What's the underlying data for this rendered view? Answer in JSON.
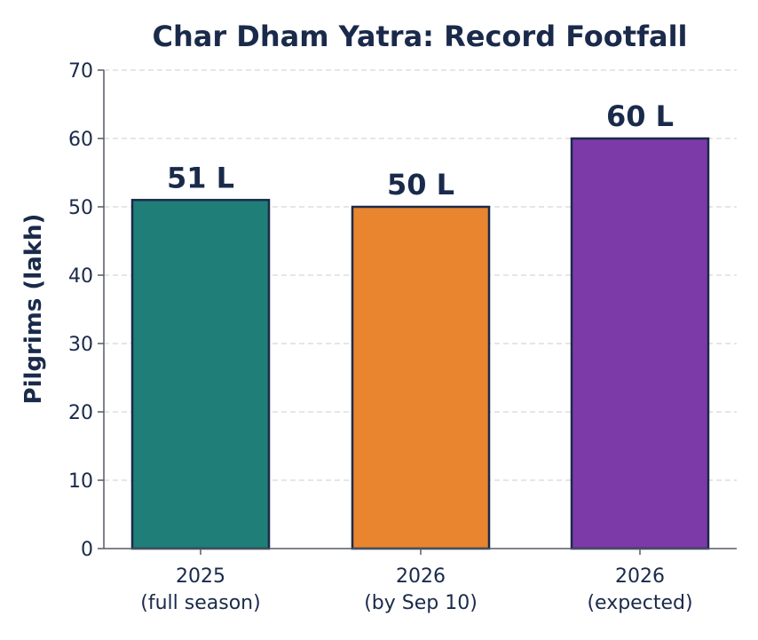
{
  "chart_data": {
    "type": "bar",
    "title": "Char Dham Yatra: Record Footfall",
    "xlabel": "",
    "ylabel": "Pilgrims (lakh)",
    "ylim": [
      0,
      70
    ],
    "yticks": [
      0,
      10,
      20,
      30,
      40,
      50,
      60,
      70
    ],
    "grid": "y-dashed",
    "categories": [
      {
        "line1": "2025",
        "line2": "(full season)"
      },
      {
        "line1": "2026",
        "line2": "(by Sep 10)"
      },
      {
        "line1": "2026",
        "line2": "(expected)"
      }
    ],
    "values": [
      51,
      50,
      60
    ],
    "data_labels": [
      "51 L",
      "50 L",
      "60 L"
    ],
    "colors": [
      "#1f7f78",
      "#e8852e",
      "#7c3aa8"
    ],
    "edge_color": "#1a2a4a",
    "text_color": "#1a2a4a",
    "grid_color": "#dddddd"
  }
}
